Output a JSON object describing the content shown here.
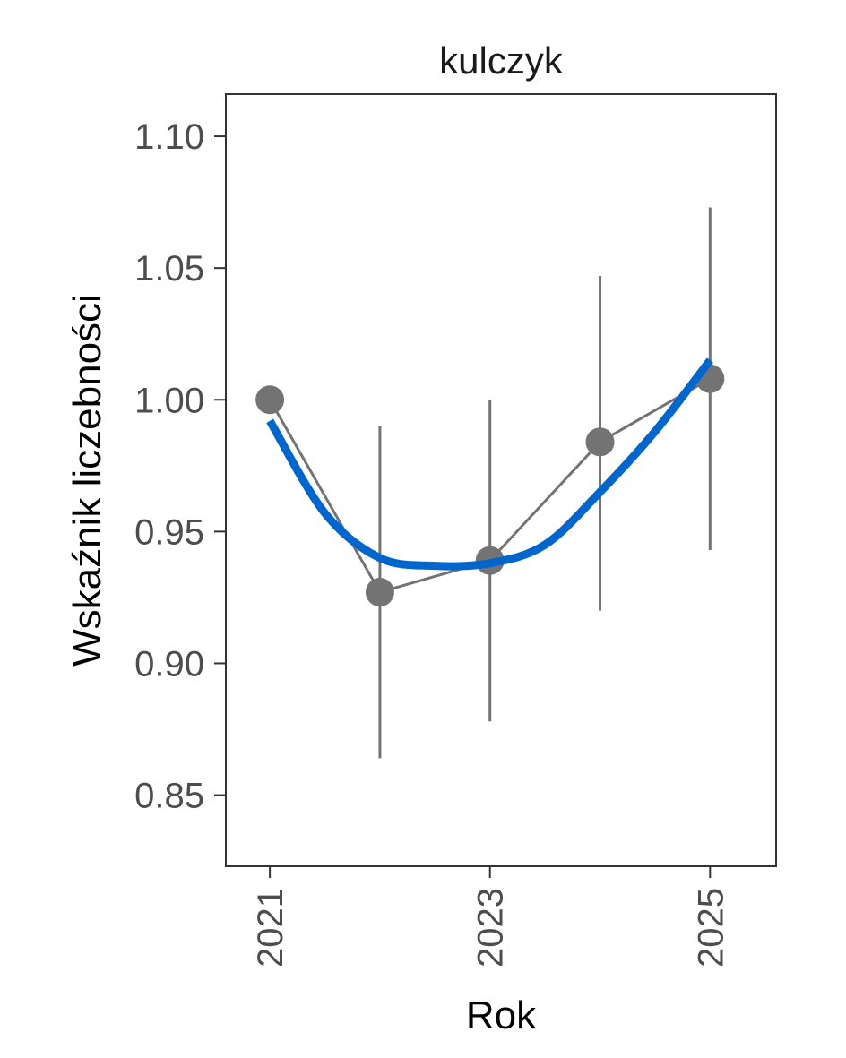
{
  "chart_data": {
    "type": "line",
    "title": "kulczyk",
    "xlabel": "Rok",
    "ylabel": "Wskaźnik liczebności",
    "xlim": [
      2020.6,
      2025.6
    ],
    "ylim": [
      0.823,
      1.116
    ],
    "x_ticks": [
      "2021",
      "2023",
      "2025"
    ],
    "y_ticks": [
      "0.85",
      "0.90",
      "0.95",
      "1.00",
      "1.05",
      "1.10"
    ],
    "grid": false,
    "legend": "none",
    "series": [
      {
        "x": [
          2021,
          2022,
          2023,
          2024,
          2025
        ],
        "y": [
          1.0,
          0.927,
          0.939,
          0.984,
          1.008
        ],
        "lower": [
          null,
          0.864,
          0.878,
          0.92,
          0.943
        ],
        "upper": [
          null,
          0.99,
          1.0,
          1.047,
          1.073
        ],
        "color": "#737373"
      }
    ],
    "trend": {
      "x": [
        2021.0,
        2021.5,
        2022.0,
        2022.5,
        2023.0,
        2023.5,
        2024.0,
        2024.5,
        2025.0
      ],
      "y": [
        0.992,
        0.957,
        0.94,
        0.937,
        0.938,
        0.945,
        0.965,
        0.988,
        1.015
      ],
      "color": "#0066cc"
    }
  }
}
